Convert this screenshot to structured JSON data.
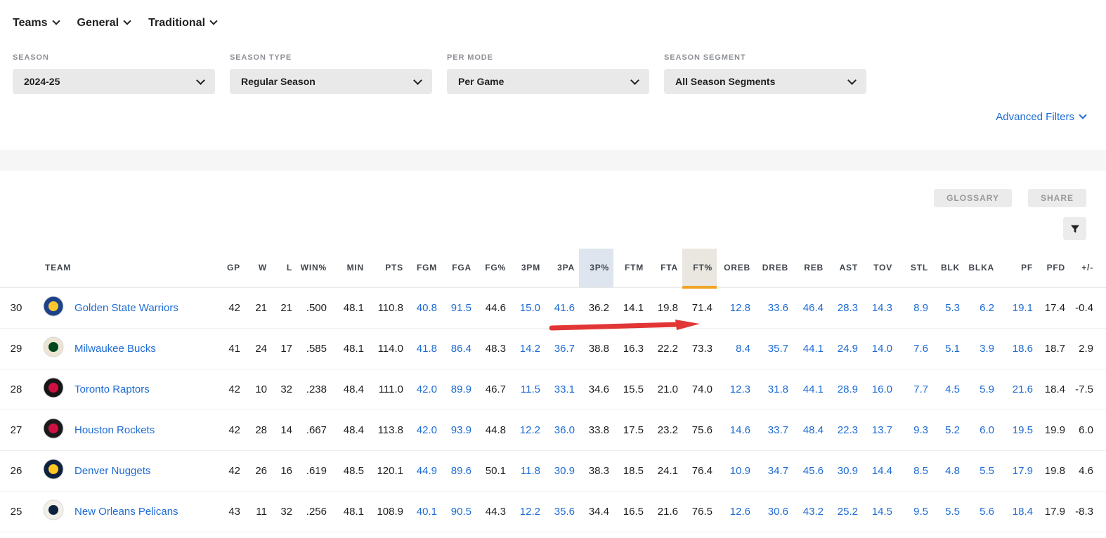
{
  "nav": {
    "items": [
      {
        "label": "Teams"
      },
      {
        "label": "General"
      },
      {
        "label": "Traditional"
      }
    ]
  },
  "filters": [
    {
      "label": "SEASON",
      "value": "2024-25"
    },
    {
      "label": "SEASON TYPE",
      "value": "Regular Season"
    },
    {
      "label": "PER MODE",
      "value": "Per Game"
    },
    {
      "label": "SEASON SEGMENT",
      "value": "All Season Segments"
    }
  ],
  "advanced_filters_label": "Advanced Filters",
  "toolbar": {
    "glossary_label": "GLOSSARY",
    "share_label": "SHARE"
  },
  "colors": {
    "accent_link": "#1d6bd4",
    "sort_underline_orange": "#efa528",
    "highlight_blue": "#dfe5ee",
    "highlight_sort_bg": "#eae7e0",
    "arrow_red": "#e23535"
  },
  "annotation": {
    "type": "red-arrow",
    "points_at": "FT% column value of row 30"
  },
  "table": {
    "team_header": "TEAM",
    "columns": [
      {
        "key": "GP",
        "link": false
      },
      {
        "key": "W",
        "link": false
      },
      {
        "key": "L",
        "link": false
      },
      {
        "key": "WIN%",
        "link": false
      },
      {
        "key": "MIN",
        "link": false
      },
      {
        "key": "PTS",
        "link": false
      },
      {
        "key": "FGM",
        "link": true
      },
      {
        "key": "FGA",
        "link": true
      },
      {
        "key": "FG%",
        "link": false
      },
      {
        "key": "3PM",
        "link": true
      },
      {
        "key": "3PA",
        "link": true
      },
      {
        "key": "3P%",
        "link": false,
        "highlight": "blue"
      },
      {
        "key": "FTM",
        "link": false
      },
      {
        "key": "FTA",
        "link": false
      },
      {
        "key": "FT%",
        "link": false,
        "highlight": "sort"
      },
      {
        "key": "OREB",
        "link": true
      },
      {
        "key": "DREB",
        "link": true
      },
      {
        "key": "REB",
        "link": true
      },
      {
        "key": "AST",
        "link": true
      },
      {
        "key": "TOV",
        "link": true
      },
      {
        "key": "STL",
        "link": true
      },
      {
        "key": "BLK",
        "link": true
      },
      {
        "key": "BLKA",
        "link": true
      },
      {
        "key": "PF",
        "link": true
      },
      {
        "key": "PFD",
        "link": false
      },
      {
        "key": "+/-",
        "link": false
      }
    ],
    "rows": [
      {
        "rank": "30",
        "team": "Golden State Warriors",
        "logo": {
          "name": "warriors-logo",
          "bg": "#1d428a",
          "fg": "#ffc72c"
        },
        "values": [
          "42",
          "21",
          "21",
          ".500",
          "48.1",
          "110.8",
          "40.8",
          "91.5",
          "44.6",
          "15.0",
          "41.6",
          "36.2",
          "14.1",
          "19.8",
          "71.4",
          "12.8",
          "33.6",
          "46.4",
          "28.3",
          "14.3",
          "8.9",
          "5.3",
          "6.2",
          "19.1",
          "17.4",
          "-0.4"
        ]
      },
      {
        "rank": "29",
        "team": "Milwaukee Bucks",
        "logo": {
          "name": "bucks-logo",
          "bg": "#ece5d3",
          "fg": "#00471b"
        },
        "values": [
          "41",
          "24",
          "17",
          ".585",
          "48.1",
          "114.0",
          "41.8",
          "86.4",
          "48.3",
          "14.2",
          "36.7",
          "38.8",
          "16.3",
          "22.2",
          "73.3",
          "8.4",
          "35.7",
          "44.1",
          "24.9",
          "14.0",
          "7.6",
          "5.1",
          "3.9",
          "18.6",
          "18.7",
          "2.9"
        ]
      },
      {
        "rank": "28",
        "team": "Toronto Raptors",
        "logo": {
          "name": "raptors-logo",
          "bg": "#161616",
          "fg": "#ce1141"
        },
        "values": [
          "42",
          "10",
          "32",
          ".238",
          "48.4",
          "111.0",
          "42.0",
          "89.9",
          "46.7",
          "11.5",
          "33.1",
          "34.6",
          "15.5",
          "21.0",
          "74.0",
          "12.3",
          "31.8",
          "44.1",
          "28.9",
          "16.0",
          "7.7",
          "4.5",
          "5.9",
          "21.6",
          "18.4",
          "-7.5"
        ]
      },
      {
        "rank": "27",
        "team": "Houston Rockets",
        "logo": {
          "name": "rockets-logo",
          "bg": "#1a1a1a",
          "fg": "#ce1141"
        },
        "values": [
          "42",
          "28",
          "14",
          ".667",
          "48.4",
          "113.8",
          "42.0",
          "93.9",
          "44.8",
          "12.2",
          "36.0",
          "33.8",
          "17.5",
          "23.2",
          "75.6",
          "14.6",
          "33.7",
          "48.4",
          "22.3",
          "13.7",
          "9.3",
          "5.2",
          "6.0",
          "19.5",
          "19.9",
          "6.0"
        ]
      },
      {
        "rank": "26",
        "team": "Denver Nuggets",
        "logo": {
          "name": "nuggets-logo",
          "bg": "#0e2240",
          "fg": "#fec524"
        },
        "values": [
          "42",
          "26",
          "16",
          ".619",
          "48.5",
          "120.1",
          "44.9",
          "89.6",
          "50.1",
          "11.8",
          "30.9",
          "38.3",
          "18.5",
          "24.1",
          "76.4",
          "10.9",
          "34.7",
          "45.6",
          "30.9",
          "14.4",
          "8.5",
          "4.8",
          "5.5",
          "17.9",
          "19.8",
          "4.6"
        ]
      },
      {
        "rank": "25",
        "team": "New Orleans Pelicans",
        "logo": {
          "name": "pelicans-logo",
          "bg": "#f3f0e8",
          "fg": "#0c2340"
        },
        "values": [
          "43",
          "11",
          "32",
          ".256",
          "48.1",
          "108.9",
          "40.1",
          "90.5",
          "44.3",
          "12.2",
          "35.6",
          "34.4",
          "16.5",
          "21.6",
          "76.5",
          "12.6",
          "30.6",
          "43.2",
          "25.2",
          "14.5",
          "9.5",
          "5.5",
          "5.6",
          "18.4",
          "17.9",
          "-8.3"
        ]
      }
    ]
  }
}
